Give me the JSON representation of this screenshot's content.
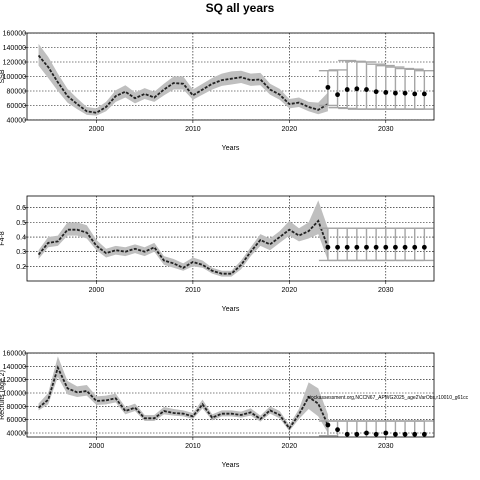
{
  "figure_title": "SQ all years",
  "colors": {
    "band": "#bfbfbf",
    "line": "#222222",
    "point": "#000000",
    "errorbar": "#a6a6a6",
    "grid": "#000000"
  },
  "chart_data": [
    {
      "type": "line",
      "title": "",
      "xlabel": "Years",
      "ylabel": "SSB",
      "xlim": [
        1992.8,
        2035.0
      ],
      "ylim": [
        40000,
        160000
      ],
      "xticks": [
        2000,
        2010,
        2020,
        2030
      ],
      "yticks": [
        40000,
        60000,
        80000,
        100000,
        120000,
        140000,
        160000
      ],
      "ytick_labels": [
        "40000",
        "60000",
        "80000",
        "100000",
        "120000",
        "140000",
        "160000"
      ],
      "grid": true,
      "historical": {
        "x": [
          1994,
          1995,
          1996,
          1997,
          1998,
          1999,
          2000,
          2001,
          2002,
          2003,
          2004,
          2005,
          2006,
          2007,
          2008,
          2009,
          2010,
          2011,
          2012,
          2013,
          2014,
          2015,
          2016,
          2017,
          2018,
          2019,
          2020,
          2021,
          2022,
          2023,
          2024
        ],
        "median": [
          129000,
          113000,
          92000,
          73000,
          62000,
          52000,
          50000,
          58000,
          73000,
          79000,
          70000,
          76000,
          71000,
          82000,
          91000,
          90000,
          74000,
          82000,
          90000,
          95000,
          97000,
          99000,
          95000,
          96000,
          82000,
          75000,
          62000,
          64000,
          58000,
          54000,
          62000
        ],
        "lower": [
          115000,
          98000,
          80000,
          64000,
          55000,
          47000,
          46000,
          52000,
          65000,
          71000,
          63000,
          69000,
          65000,
          74000,
          82000,
          82000,
          68000,
          75000,
          82000,
          87000,
          89000,
          91000,
          87000,
          88000,
          75000,
          68000,
          56000,
          58000,
          52000,
          48000,
          52000
        ],
        "upper": [
          145000,
          127000,
          104000,
          83000,
          70000,
          58000,
          56000,
          65000,
          81000,
          88000,
          78000,
          84000,
          79000,
          90000,
          100000,
          100000,
          82000,
          90000,
          98000,
          104000,
          107000,
          108000,
          104000,
          105000,
          90000,
          83000,
          69000,
          71000,
          65000,
          64000,
          78000
        ]
      },
      "projection": {
        "x": [
          2024,
          2025,
          2026,
          2027,
          2028,
          2029,
          2030,
          2031,
          2032,
          2033,
          2034
        ],
        "points": [
          85000,
          75000,
          82000,
          83000,
          82000,
          79000,
          78000,
          77000,
          77000,
          76000,
          76000
        ],
        "lower": [
          60000,
          57000,
          56000,
          55000,
          55000,
          55000,
          55000,
          55000,
          55000,
          55000,
          55000
        ],
        "upper": [
          108000,
          109000,
          122000,
          121000,
          120000,
          117000,
          115000,
          113000,
          111000,
          110000,
          108000
        ]
      }
    },
    {
      "type": "line",
      "title": "",
      "xlabel": "Years",
      "ylabel": "F4-8",
      "xlim": [
        1992.8,
        2035.0
      ],
      "ylim": [
        0.1,
        0.68
      ],
      "xticks": [
        2000,
        2010,
        2020,
        2030
      ],
      "yticks": [
        0.2,
        0.3,
        0.4,
        0.5,
        0.6
      ],
      "ytick_labels": [
        "0.2",
        "0.3",
        "0.4",
        "0.5",
        "0.6"
      ],
      "grid": true,
      "historical": {
        "x": [
          1994,
          1995,
          1996,
          1997,
          1998,
          1999,
          2000,
          2001,
          2002,
          2003,
          2004,
          2005,
          2006,
          2007,
          2008,
          2009,
          2010,
          2011,
          2012,
          2013,
          2014,
          2015,
          2016,
          2017,
          2018,
          2019,
          2020,
          2021,
          2022,
          2023,
          2024
        ],
        "median": [
          0.28,
          0.36,
          0.37,
          0.45,
          0.45,
          0.43,
          0.34,
          0.29,
          0.31,
          0.3,
          0.32,
          0.3,
          0.33,
          0.24,
          0.22,
          0.19,
          0.23,
          0.21,
          0.17,
          0.15,
          0.15,
          0.21,
          0.3,
          0.38,
          0.35,
          0.4,
          0.45,
          0.41,
          0.44,
          0.51,
          0.33
        ],
        "lower": [
          0.25,
          0.33,
          0.34,
          0.41,
          0.41,
          0.39,
          0.31,
          0.26,
          0.28,
          0.27,
          0.29,
          0.27,
          0.3,
          0.21,
          0.19,
          0.17,
          0.2,
          0.19,
          0.15,
          0.13,
          0.13,
          0.18,
          0.27,
          0.34,
          0.31,
          0.36,
          0.41,
          0.37,
          0.39,
          0.42,
          0.24
        ],
        "upper": [
          0.31,
          0.4,
          0.41,
          0.5,
          0.5,
          0.48,
          0.38,
          0.32,
          0.34,
          0.33,
          0.35,
          0.33,
          0.36,
          0.27,
          0.25,
          0.22,
          0.26,
          0.24,
          0.19,
          0.17,
          0.17,
          0.24,
          0.33,
          0.42,
          0.39,
          0.44,
          0.51,
          0.46,
          0.5,
          0.65,
          0.46
        ]
      },
      "projection": {
        "x": [
          2024,
          2025,
          2026,
          2027,
          2028,
          2029,
          2030,
          2031,
          2032,
          2033,
          2034
        ],
        "points": [
          0.33,
          0.33,
          0.33,
          0.33,
          0.33,
          0.33,
          0.33,
          0.33,
          0.33,
          0.33,
          0.33
        ],
        "lower": [
          0.24,
          0.24,
          0.24,
          0.24,
          0.24,
          0.24,
          0.24,
          0.24,
          0.24,
          0.24,
          0.24
        ],
        "upper": [
          0.46,
          0.46,
          0.46,
          0.46,
          0.46,
          0.46,
          0.46,
          0.46,
          0.46,
          0.46,
          0.46
        ]
      }
    },
    {
      "type": "line",
      "title": "",
      "xlabel": "Years",
      "ylabel": "Recruits (age 2)",
      "annotation": "stockassessment.org,NCCN67_APWG2025_age2VarObs,r10010_g61cc",
      "xlim": [
        1992.8,
        2035.0
      ],
      "ylim": [
        34000,
        160000
      ],
      "xticks": [
        2000,
        2010,
        2020,
        2030
      ],
      "yticks": [
        40000,
        60000,
        80000,
        100000,
        120000,
        140000,
        160000
      ],
      "ytick_labels": [
        "40000",
        "60000",
        "80000",
        "100000",
        "120000",
        "140000",
        "160000"
      ],
      "grid": true,
      "historical": {
        "x": [
          1994,
          1995,
          1996,
          1997,
          1998,
          1999,
          2000,
          2001,
          2002,
          2003,
          2004,
          2005,
          2006,
          2007,
          2008,
          2009,
          2010,
          2011,
          2012,
          2013,
          2014,
          2015,
          2016,
          2017,
          2018,
          2019,
          2020,
          2021,
          2022,
          2023,
          2024
        ],
        "median": [
          78000,
          90000,
          138000,
          107000,
          101000,
          103000,
          88000,
          89000,
          92000,
          73000,
          78000,
          62000,
          62000,
          73000,
          70000,
          69000,
          65000,
          83000,
          63000,
          69000,
          69000,
          67000,
          71000,
          61000,
          74000,
          67000,
          47000,
          68000,
          94000,
          84000,
          52000
        ],
        "lower": [
          74000,
          83000,
          124000,
          98000,
          94000,
          96000,
          82000,
          83000,
          86000,
          68000,
          73000,
          58000,
          58000,
          68000,
          66000,
          65000,
          61000,
          77000,
          59000,
          65000,
          65000,
          63000,
          66000,
          57000,
          69000,
          62000,
          43000,
          61000,
          76000,
          65000,
          40000
        ],
        "upper": [
          84000,
          100000,
          155000,
          118000,
          110000,
          112000,
          95000,
          96000,
          99000,
          79000,
          84000,
          67000,
          67000,
          79000,
          76000,
          74000,
          70000,
          90000,
          68000,
          74000,
          74000,
          72000,
          77000,
          66000,
          80000,
          73000,
          52000,
          76000,
          116000,
          107000,
          68000
        ]
      },
      "projection": {
        "x": [
          2024,
          2025,
          2026,
          2027,
          2028,
          2029,
          2030,
          2031,
          2032,
          2033,
          2034
        ],
        "points": [
          52000,
          45000,
          38000,
          38000,
          40000,
          38000,
          40000,
          38000,
          38000,
          38000,
          38000
        ],
        "lower": [
          36000,
          33000,
          30000,
          30000,
          30000,
          30000,
          30000,
          30000,
          30000,
          30000,
          30000
        ],
        "upper": [
          58000,
          58000,
          58000,
          58000,
          58000,
          58000,
          58000,
          58000,
          58000,
          58000,
          58000
        ]
      }
    }
  ]
}
